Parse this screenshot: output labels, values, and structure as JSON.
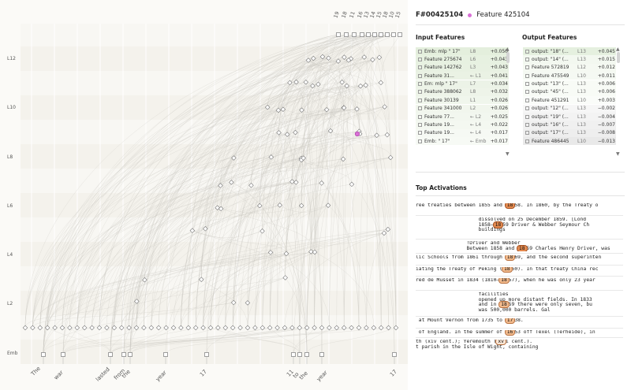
{
  "graph": {
    "layer_labels": [
      "L12",
      "L10",
      "L8",
      "L6",
      "L4",
      "L2",
      "Emb"
    ],
    "tokens": [
      "The",
      "war",
      "lasted",
      "from",
      "the",
      "year",
      "17",
      "11",
      "to",
      "the",
      "year",
      "17"
    ],
    "top_output_labels": [
      "19",
      "18",
      "11",
      "16",
      "13",
      "14",
      "15",
      "18",
      "10",
      "15"
    ]
  },
  "header": {
    "id": "F#00425104",
    "feature": "Feature 425104"
  },
  "input_features": {
    "title": "Input Features",
    "items": [
      {
        "name": "Emb: mlp \" 17\"",
        "layer": "L8",
        "value": "+0.050",
        "color": "#e4efdd"
      },
      {
        "name": "Feature 275674",
        "layer": "L6",
        "value": "+0.043",
        "color": "#e7f1e1"
      },
      {
        "name": "Feature 142762",
        "layer": "L3",
        "value": "+0.043",
        "color": "#e8f1e2"
      },
      {
        "name": "Feature 31...",
        "layer": "← L1",
        "value": "+0.041",
        "color": "#eaf2e4"
      },
      {
        "name": "Em: mlp \" 17\"",
        "layer": "L7",
        "value": "+0.034",
        "color": "#ecf3e7"
      },
      {
        "name": "Feature 388062",
        "layer": "L8",
        "value": "+0.032",
        "color": "#eef4e9"
      },
      {
        "name": "Feature 30139",
        "layer": "L1",
        "value": "+0.026",
        "color": "#f0f6ec"
      },
      {
        "name": "Feature 341000",
        "layer": "L2",
        "value": "+0.026",
        "color": "#f1f6ed"
      },
      {
        "name": "Feature 77...",
        "layer": "← L2",
        "value": "+0.025",
        "color": "#f2f7ef"
      },
      {
        "name": "Feature 19...",
        "layer": "← L4",
        "value": "+0.022",
        "color": "#f4f8f1"
      },
      {
        "name": "Feature 19...",
        "layer": "← L4",
        "value": "+0.017",
        "color": "#f6f9f4"
      },
      {
        "name": "Emb: \" 17\"",
        "layer": "← Emb",
        "value": "+0.017",
        "color": "#f7faf5"
      }
    ]
  },
  "output_features": {
    "title": "Output Features",
    "items": [
      {
        "name": "output: \"18\" (...",
        "layer": "L13",
        "value": "+0.045",
        "color": "#e5f0df"
      },
      {
        "name": "output: \"14\" (...",
        "layer": "L13",
        "value": "+0.015",
        "color": "#f3f8f0"
      },
      {
        "name": "Feature 572819",
        "layer": "L12",
        "value": "+0.012",
        "color": "#f5f9f2"
      },
      {
        "name": "Feature 475549",
        "layer": "L10",
        "value": "+0.011",
        "color": "#f5f9f3"
      },
      {
        "name": "output: \"13\" (...",
        "layer": "L13",
        "value": "+0.006",
        "color": "#f8fbf6"
      },
      {
        "name": "output: \"45\" (...",
        "layer": "L13",
        "value": "+0.006",
        "color": "#f8fbf6"
      },
      {
        "name": "Feature 451291",
        "layer": "L10",
        "value": "+0.003",
        "color": "#fafcf9"
      },
      {
        "name": "output: \"12\" (...",
        "layer": "L13",
        "value": "−0.002",
        "color": "#f6f6f6"
      },
      {
        "name": "output: \"19\" (...",
        "layer": "L13",
        "value": "−0.004",
        "color": "#f3f3f3"
      },
      {
        "name": "output: \"16\" (...",
        "layer": "L13",
        "value": "−0.007",
        "color": "#f0f0f0"
      },
      {
        "name": "output: \"17\" (...",
        "layer": "L13",
        "value": "−0.008",
        "color": "#eeeeee"
      },
      {
        "name": "Feature 486445",
        "layer": "L10",
        "value": "−0.013",
        "color": "#e9e9e9"
      }
    ]
  },
  "activations": {
    "title": "Top Activations",
    "rows": [
      {
        "pre": "ree treaties between 1855 and ",
        "hl": "18",
        "post": "58. In 1860, by the Treaty o",
        "level": 1
      },
      {
        "pre": "                     dissolved on 25 December 1859. [Lond\n                     1858–",
        "hl": "18",
        "post": "59 Driver & Webber Seymour Ch\n                     buildings",
        "level": 1
      },
      {
        "pre": "                 !Driver and Webber\n                 Between 1858 and ",
        "hl": "18",
        "post": "59 Charles Henry Driver, was",
        "level": 1
      },
      {
        "pre": "lic Schools from 1861 through ",
        "hl": "18",
        "post": "69, and the second superinten",
        "level": 2
      },
      {
        "pre": "iating the Treaty of Peking (",
        "hl": "18",
        "post": "60). In that treaty China rec",
        "level": 2
      },
      {
        "pre": "red de Musset in 1834 (1810–",
        "hl": "18",
        "post": "57), when he was only 23 year",
        "level": 2
      },
      {
        "pre": "                     facilities\n                     opened up more distant fields. In 1833\n                     and in ",
        "hl": "18",
        "post": "59 there were only seven, bu\n                     was 500,000 barrels. Gal",
        "level": 2
      },
      {
        "pre": " at Mount Vernon from 1735 to ",
        "hl": "17",
        "post": "38.",
        "level": 2
      },
      {
        "pre": " of England. In the summer of ",
        "hl": "16",
        "post": "53 off Texel (Terheide), in",
        "level": 2
      },
      {
        "pre": "th (xiv cent.); Yeremouth (",
        "hl": "xv",
        "post": "i cent.).\nt parish in the Isle of Wight, containing",
        "level": 3
      }
    ]
  }
}
